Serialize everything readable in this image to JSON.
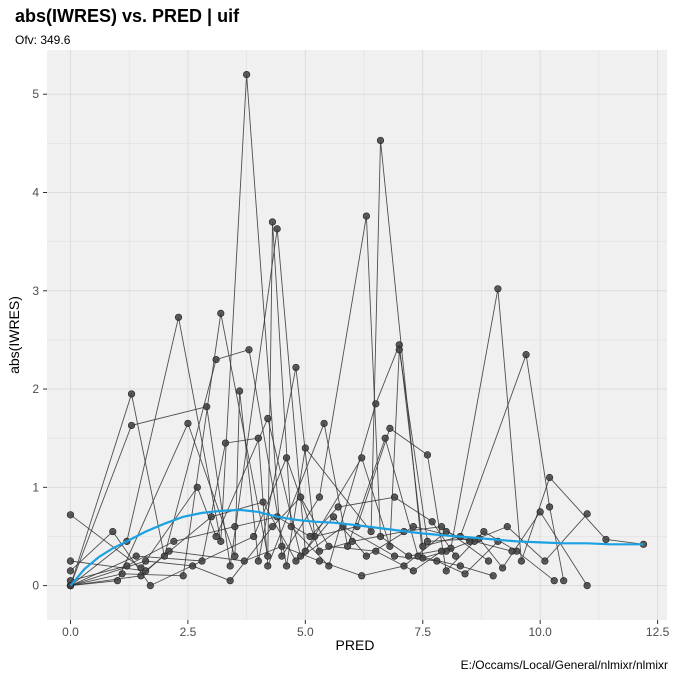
{
  "chart_data": {
    "type": "scatter",
    "title": "abs(IWRES) vs. PRED | uif",
    "subtitle": "Ofv: 349.6",
    "xlabel": "PRED",
    "ylabel": "abs(IWRES)",
    "caption": "E:/Occams/Local/General/nlmixr/nlmixr",
    "xlim": [
      -0.5,
      12.7
    ],
    "ylim": [
      -0.35,
      5.45
    ],
    "x_ticks": [
      0.0,
      2.5,
      5.0,
      7.5,
      10.0,
      12.5
    ],
    "x_tick_labels": [
      "0.0",
      "2.5",
      "5.0",
      "7.5",
      "10.0",
      "12.5"
    ],
    "y_ticks": [
      0,
      1,
      2,
      3,
      4,
      5
    ],
    "y_tick_labels": [
      "0",
      "1",
      "2",
      "3",
      "4",
      "5"
    ],
    "grid": true,
    "colors": {
      "panel": "#f0f0f0",
      "grid": "#dcdcdc",
      "points": "#404040",
      "lines": "#333333",
      "smooth": "#1ba1e2"
    },
    "subjects": [
      [
        [
          0,
          0
        ],
        [
          1.2,
          0.45
        ],
        [
          2.3,
          2.73
        ],
        [
          3.2,
          0.45
        ],
        [
          3.75,
          5.2
        ],
        [
          4.5,
          0.3
        ],
        [
          5.3,
          0.9
        ],
        [
          6.3,
          3.76
        ],
        [
          6.6,
          0.5
        ],
        [
          7.2,
          0.3
        ],
        [
          8.1,
          0.38
        ],
        [
          9.1,
          3.02
        ],
        [
          9.6,
          0.25
        ],
        [
          10.2,
          1.1
        ],
        [
          11.4,
          0.47
        ],
        [
          12.2,
          0.42
        ]
      ],
      [
        [
          0,
          0
        ],
        [
          1.3,
          1.95
        ],
        [
          2.0,
          0.3
        ],
        [
          3.1,
          2.3
        ],
        [
          3.8,
          2.4
        ],
        [
          4.6,
          0.2
        ],
        [
          5.0,
          1.4
        ],
        [
          6.4,
          0.55
        ],
        [
          6.6,
          4.53
        ],
        [
          7.5,
          0.28
        ],
        [
          8.0,
          0.35
        ],
        [
          9.3,
          0.6
        ],
        [
          10.1,
          0.25
        ],
        [
          11.0,
          0.73
        ]
      ],
      [
        [
          0,
          0
        ],
        [
          1.1,
          0.12
        ],
        [
          2.4,
          0.1
        ],
        [
          3.2,
          2.77
        ],
        [
          4.2,
          0.3
        ],
        [
          4.3,
          3.7
        ],
        [
          4.7,
          0.6
        ],
        [
          5.5,
          0.2
        ],
        [
          6.5,
          1.85
        ],
        [
          7.0,
          2.45
        ],
        [
          7.5,
          0.4
        ],
        [
          8.3,
          0.5
        ],
        [
          9.7,
          2.35
        ],
        [
          10.2,
          0.8
        ],
        [
          10.5,
          0.05
        ]
      ],
      [
        [
          0,
          0
        ],
        [
          1.3,
          1.63
        ],
        [
          2.9,
          1.82
        ],
        [
          3.4,
          0.2
        ],
        [
          4.4,
          3.63
        ],
        [
          5.0,
          0.35
        ],
        [
          6.2,
          1.3
        ],
        [
          6.8,
          0.4
        ],
        [
          7.0,
          2.4
        ],
        [
          7.6,
          0.45
        ],
        [
          8.7,
          0.48
        ],
        [
          9.2,
          0.18
        ],
        [
          10.0,
          0.75
        ],
        [
          11.0,
          0.0
        ]
      ],
      [
        [
          0,
          0
        ],
        [
          1.0,
          0.05
        ],
        [
          2.5,
          1.65
        ],
        [
          3.5,
          0.3
        ],
        [
          3.6,
          1.98
        ],
        [
          4.0,
          0.25
        ],
        [
          4.8,
          2.22
        ],
        [
          5.2,
          0.5
        ],
        [
          6.1,
          0.6
        ],
        [
          6.8,
          1.6
        ],
        [
          7.6,
          1.33
        ],
        [
          8.0,
          0.15
        ],
        [
          8.8,
          0.55
        ],
        [
          9.5,
          0.35
        ],
        [
          10.3,
          0.05
        ]
      ],
      [
        [
          0,
          0
        ],
        [
          1.4,
          0.3
        ],
        [
          2.8,
          0.25
        ],
        [
          3.3,
          1.45
        ],
        [
          4.0,
          1.5
        ],
        [
          4.2,
          0.2
        ],
        [
          5.4,
          1.65
        ],
        [
          5.9,
          0.4
        ],
        [
          6.7,
          1.5
        ],
        [
          7.4,
          0.3
        ],
        [
          8.3,
          0.2
        ],
        [
          9.0,
          0.1
        ]
      ],
      [
        [
          0,
          0.72
        ],
        [
          1.5,
          0.18
        ],
        [
          2.7,
          1.0
        ],
        [
          3.1,
          0.5
        ],
        [
          4.2,
          1.7
        ],
        [
          4.9,
          0.3
        ],
        [
          5.6,
          0.7
        ],
        [
          6.3,
          0.3
        ],
        [
          7.3,
          0.6
        ],
        [
          8.6,
          0.45
        ],
        [
          9.4,
          0.35
        ]
      ],
      [
        [
          0,
          0.25
        ],
        [
          1.6,
          0.15
        ],
        [
          3.0,
          0.7
        ],
        [
          4.1,
          0.85
        ],
        [
          4.8,
          0.25
        ],
        [
          5.8,
          0.6
        ],
        [
          6.9,
          0.3
        ],
        [
          7.8,
          0.25
        ],
        [
          8.4,
          0.12
        ],
        [
          9.1,
          0.45
        ]
      ],
      [
        [
          0,
          0.15
        ],
        [
          0.9,
          0.55
        ],
        [
          1.7,
          0.0
        ],
        [
          3.9,
          0.5
        ],
        [
          4.6,
          1.3
        ],
        [
          5.3,
          0.35
        ],
        [
          6.0,
          0.45
        ],
        [
          7.1,
          0.55
        ],
        [
          7.9,
          0.6
        ],
        [
          8.9,
          0.25
        ]
      ],
      [
        [
          0,
          0.05
        ],
        [
          1.2,
          0.2
        ],
        [
          2.2,
          0.45
        ],
        [
          3.5,
          0.6
        ],
        [
          4.4,
          0.7
        ],
        [
          5.1,
          0.5
        ],
        [
          5.7,
          0.8
        ],
        [
          6.9,
          0.9
        ],
        [
          7.7,
          0.65
        ],
        [
          8.2,
          0.3
        ]
      ],
      [
        [
          0,
          0
        ],
        [
          1.5,
          0.1
        ],
        [
          2.1,
          0.35
        ],
        [
          3.7,
          0.25
        ],
        [
          4.5,
          0.4
        ],
        [
          5.3,
          0.25
        ],
        [
          6.2,
          0.1
        ],
        [
          7.1,
          0.2
        ],
        [
          8.0,
          0.55
        ],
        [
          8.5,
          0.45
        ]
      ],
      [
        [
          0,
          0
        ],
        [
          1.6,
          0.25
        ],
        [
          2.6,
          0.2
        ],
        [
          3.4,
          0.05
        ],
        [
          4.3,
          0.6
        ],
        [
          4.9,
          0.9
        ],
        [
          5.5,
          0.4
        ],
        [
          6.5,
          0.35
        ],
        [
          7.3,
          0.15
        ],
        [
          7.9,
          0.35
        ]
      ]
    ],
    "smooth": {
      "x": [
        0,
        0.3,
        0.6,
        0.9,
        1.2,
        1.6,
        2.0,
        2.4,
        2.8,
        3.2,
        3.6,
        4.0,
        4.4,
        4.8,
        5.2,
        5.6,
        6.0,
        6.5,
        7.0,
        7.5,
        8.0,
        8.5,
        9.0,
        9.5,
        10.0,
        10.5,
        11.0,
        11.5,
        12.2
      ],
      "y": [
        0.0,
        0.17,
        0.29,
        0.38,
        0.45,
        0.55,
        0.63,
        0.7,
        0.74,
        0.76,
        0.77,
        0.75,
        0.7,
        0.67,
        0.65,
        0.64,
        0.62,
        0.59,
        0.56,
        0.53,
        0.51,
        0.49,
        0.47,
        0.45,
        0.44,
        0.43,
        0.43,
        0.42,
        0.42
      ]
    }
  }
}
